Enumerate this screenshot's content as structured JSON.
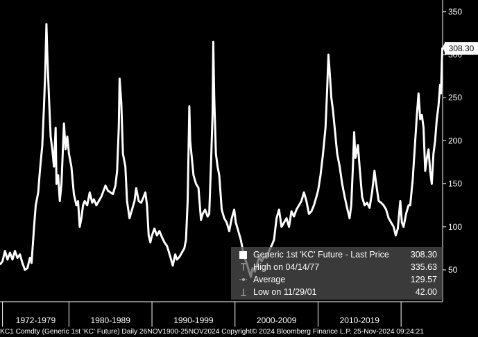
{
  "chart_data": {
    "type": "line",
    "title": "",
    "xlabel": "",
    "ylabel": "",
    "ylim": [
      30,
      360
    ],
    "y_ticks": [
      50,
      100,
      150,
      200,
      250,
      300,
      350
    ],
    "x_range": [
      1971.7,
      2025.0
    ],
    "decade_labels": [
      "1972-1979",
      "1980-1989",
      "1990-1999",
      "2000-2009",
      "2010-2019"
    ],
    "decade_bounds": [
      1972.0,
      1980.0,
      1990.0,
      2000.0,
      2010.0,
      2020.0
    ],
    "grid": false,
    "series": [
      {
        "name": "Generic 1st 'KC' Future",
        "color": "#ffffff",
        "points": [
          [
            1971.7,
            56
          ],
          [
            1972.0,
            60
          ],
          [
            1972.3,
            72
          ],
          [
            1972.6,
            62
          ],
          [
            1972.9,
            70
          ],
          [
            1973.2,
            62
          ],
          [
            1973.5,
            72
          ],
          [
            1973.8,
            64
          ],
          [
            1974.1,
            68
          ],
          [
            1974.4,
            58
          ],
          [
            1974.7,
            50
          ],
          [
            1975.0,
            52
          ],
          [
            1975.3,
            64
          ],
          [
            1975.5,
            58
          ],
          [
            1975.8,
            100
          ],
          [
            1976.0,
            125
          ],
          [
            1976.3,
            140
          ],
          [
            1976.5,
            165
          ],
          [
            1976.8,
            195
          ],
          [
            1977.0,
            240
          ],
          [
            1977.15,
            280
          ],
          [
            1977.29,
            335.6
          ],
          [
            1977.4,
            300
          ],
          [
            1977.6,
            250
          ],
          [
            1977.8,
            205
          ],
          [
            1978.0,
            190
          ],
          [
            1978.2,
            170
          ],
          [
            1978.4,
            215
          ],
          [
            1978.5,
            150
          ],
          [
            1978.7,
            160
          ],
          [
            1978.9,
            130
          ],
          [
            1979.1,
            150
          ],
          [
            1979.4,
            220
          ],
          [
            1979.6,
            190
          ],
          [
            1979.8,
            205
          ],
          [
            1980.0,
            185
          ],
          [
            1980.3,
            170
          ],
          [
            1980.6,
            138
          ],
          [
            1980.9,
            125
          ],
          [
            1981.1,
            130
          ],
          [
            1981.3,
            100
          ],
          [
            1981.5,
            110
          ],
          [
            1981.7,
            125
          ],
          [
            1981.9,
            130
          ],
          [
            1982.2,
            125
          ],
          [
            1982.5,
            140
          ],
          [
            1982.8,
            128
          ],
          [
            1983.0,
            132
          ],
          [
            1983.3,
            125
          ],
          [
            1983.6,
            130
          ],
          [
            1983.9,
            135
          ],
          [
            1984.1,
            140
          ],
          [
            1984.4,
            148
          ],
          [
            1984.7,
            142
          ],
          [
            1985.0,
            140
          ],
          [
            1985.3,
            138
          ],
          [
            1985.6,
            148
          ],
          [
            1985.8,
            165
          ],
          [
            1986.0,
            215
          ],
          [
            1986.1,
            272
          ],
          [
            1986.3,
            245
          ],
          [
            1986.5,
            185
          ],
          [
            1986.8,
            170
          ],
          [
            1987.0,
            130
          ],
          [
            1987.3,
            110
          ],
          [
            1987.6,
            120
          ],
          [
            1987.9,
            130
          ],
          [
            1988.1,
            145
          ],
          [
            1988.4,
            130
          ],
          [
            1988.7,
            128
          ],
          [
            1989.0,
            135
          ],
          [
            1989.2,
            140
          ],
          [
            1989.4,
            125
          ],
          [
            1989.6,
            90
          ],
          [
            1989.8,
            82
          ],
          [
            1990.0,
            90
          ],
          [
            1990.3,
            98
          ],
          [
            1990.6,
            90
          ],
          [
            1990.9,
            95
          ],
          [
            1991.2,
            88
          ],
          [
            1991.5,
            82
          ],
          [
            1991.8,
            78
          ],
          [
            1992.0,
            72
          ],
          [
            1992.3,
            62
          ],
          [
            1992.5,
            55
          ],
          [
            1992.8,
            68
          ],
          [
            1993.0,
            62
          ],
          [
            1993.3,
            65
          ],
          [
            1993.6,
            70
          ],
          [
            1993.9,
            75
          ],
          [
            1994.1,
            85
          ],
          [
            1994.3,
            130
          ],
          [
            1994.5,
            240
          ],
          [
            1994.6,
            200
          ],
          [
            1994.8,
            180
          ],
          [
            1995.0,
            160
          ],
          [
            1995.3,
            150
          ],
          [
            1995.6,
            145
          ],
          [
            1995.9,
            108
          ],
          [
            1996.1,
            115
          ],
          [
            1996.4,
            120
          ],
          [
            1996.7,
            112
          ],
          [
            1996.9,
            115
          ],
          [
            1997.1,
            170
          ],
          [
            1997.3,
            230
          ],
          [
            1997.38,
            315
          ],
          [
            1997.5,
            250
          ],
          [
            1997.7,
            185
          ],
          [
            1997.9,
            170
          ],
          [
            1998.1,
            160
          ],
          [
            1998.4,
            120
          ],
          [
            1998.7,
            110
          ],
          [
            1999.0,
            105
          ],
          [
            1999.3,
            95
          ],
          [
            1999.6,
            110
          ],
          [
            1999.9,
            120
          ],
          [
            2000.1,
            105
          ],
          [
            2000.4,
            95
          ],
          [
            2000.7,
            85
          ],
          [
            2000.9,
            75
          ],
          [
            2001.1,
            65
          ],
          [
            2001.4,
            58
          ],
          [
            2001.7,
            48
          ],
          [
            2001.91,
            42
          ],
          [
            2002.1,
            52
          ],
          [
            2002.4,
            48
          ],
          [
            2002.7,
            58
          ],
          [
            2002.9,
            65
          ],
          [
            2003.2,
            60
          ],
          [
            2003.5,
            65
          ],
          [
            2003.8,
            64
          ],
          [
            2004.1,
            72
          ],
          [
            2004.4,
            78
          ],
          [
            2004.7,
            85
          ],
          [
            2005.0,
            110
          ],
          [
            2005.3,
            120
          ],
          [
            2005.6,
            100
          ],
          [
            2005.9,
            105
          ],
          [
            2006.2,
            110
          ],
          [
            2006.5,
            100
          ],
          [
            2006.8,
            118
          ],
          [
            2007.1,
            112
          ],
          [
            2007.4,
            120
          ],
          [
            2007.7,
            125
          ],
          [
            2008.0,
            130
          ],
          [
            2008.3,
            140
          ],
          [
            2008.6,
            130
          ],
          [
            2008.9,
            115
          ],
          [
            2009.2,
            118
          ],
          [
            2009.5,
            125
          ],
          [
            2009.8,
            135
          ],
          [
            2010.0,
            142
          ],
          [
            2010.3,
            160
          ],
          [
            2010.6,
            185
          ],
          [
            2010.9,
            215
          ],
          [
            2011.1,
            260
          ],
          [
            2011.25,
            300
          ],
          [
            2011.4,
            280
          ],
          [
            2011.6,
            250
          ],
          [
            2011.8,
            235
          ],
          [
            2012.0,
            215
          ],
          [
            2012.3,
            185
          ],
          [
            2012.6,
            170
          ],
          [
            2012.9,
            150
          ],
          [
            2013.2,
            135
          ],
          [
            2013.5,
            122
          ],
          [
            2013.8,
            110
          ],
          [
            2014.0,
            125
          ],
          [
            2014.2,
            170
          ],
          [
            2014.35,
            210
          ],
          [
            2014.5,
            180
          ],
          [
            2014.8,
            195
          ],
          [
            2015.0,
            170
          ],
          [
            2015.3,
            135
          ],
          [
            2015.6,
            125
          ],
          [
            2015.9,
            128
          ],
          [
            2016.2,
            122
          ],
          [
            2016.5,
            140
          ],
          [
            2016.8,
            165
          ],
          [
            2017.0,
            150
          ],
          [
            2017.3,
            130
          ],
          [
            2017.6,
            128
          ],
          [
            2017.9,
            125
          ],
          [
            2018.2,
            120
          ],
          [
            2018.5,
            110
          ],
          [
            2018.8,
            105
          ],
          [
            2019.1,
            100
          ],
          [
            2019.35,
            90
          ],
          [
            2019.6,
            98
          ],
          [
            2019.9,
            130
          ],
          [
            2020.1,
            105
          ],
          [
            2020.3,
            100
          ],
          [
            2020.6,
            115
          ],
          [
            2020.9,
            125
          ],
          [
            2021.1,
            125
          ],
          [
            2021.4,
            155
          ],
          [
            2021.6,
            185
          ],
          [
            2021.9,
            230
          ],
          [
            2022.1,
            255
          ],
          [
            2022.3,
            225
          ],
          [
            2022.5,
            230
          ],
          [
            2022.7,
            215
          ],
          [
            2022.9,
            165
          ],
          [
            2023.1,
            180
          ],
          [
            2023.3,
            190
          ],
          [
            2023.5,
            165
          ],
          [
            2023.7,
            150
          ],
          [
            2023.9,
            185
          ],
          [
            2024.1,
            200
          ],
          [
            2024.3,
            225
          ],
          [
            2024.5,
            240
          ],
          [
            2024.7,
            265
          ],
          [
            2024.8,
            255
          ],
          [
            2024.9,
            290
          ],
          [
            2024.97,
            308.3
          ]
        ]
      }
    ],
    "last_value_tag": "308.30",
    "legend_placement": "bottom-right"
  },
  "legend": {
    "rows": [
      {
        "label": "Generic 1st 'KC' Future - Last Price",
        "value": "308.30"
      },
      {
        "label": "High on 04/14/77",
        "value": "335.63"
      },
      {
        "label": "Average",
        "value": "129.57"
      },
      {
        "label": "Low on 11/29/01",
        "value": "42.00"
      }
    ]
  },
  "footer": {
    "text": "KC1 Comdty (Generic 1st 'KC' Future)  Daily 26NOV1900-25NOV2024 Copyright© 2024 Bloomberg Finance L.P. 25-Nov-2024 09:24:21"
  },
  "colors": {
    "background": "#000000",
    "line": "#ffffff",
    "legend_bg": "#505050"
  }
}
